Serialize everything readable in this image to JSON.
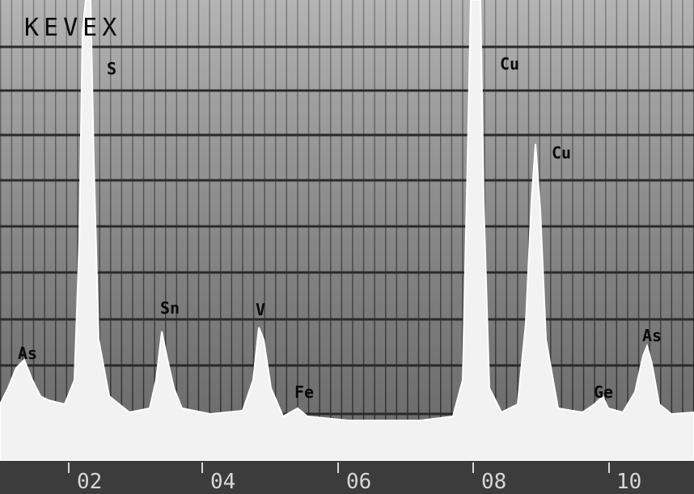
{
  "brand": "KEVEX",
  "peak_labels": [
    "S",
    "Cu",
    "Cu",
    "Sn",
    "V",
    "As",
    "Fe",
    "Ge",
    "As"
  ],
  "axis_labels": [
    "02",
    "04",
    "06",
    "08",
    "10"
  ]
}
